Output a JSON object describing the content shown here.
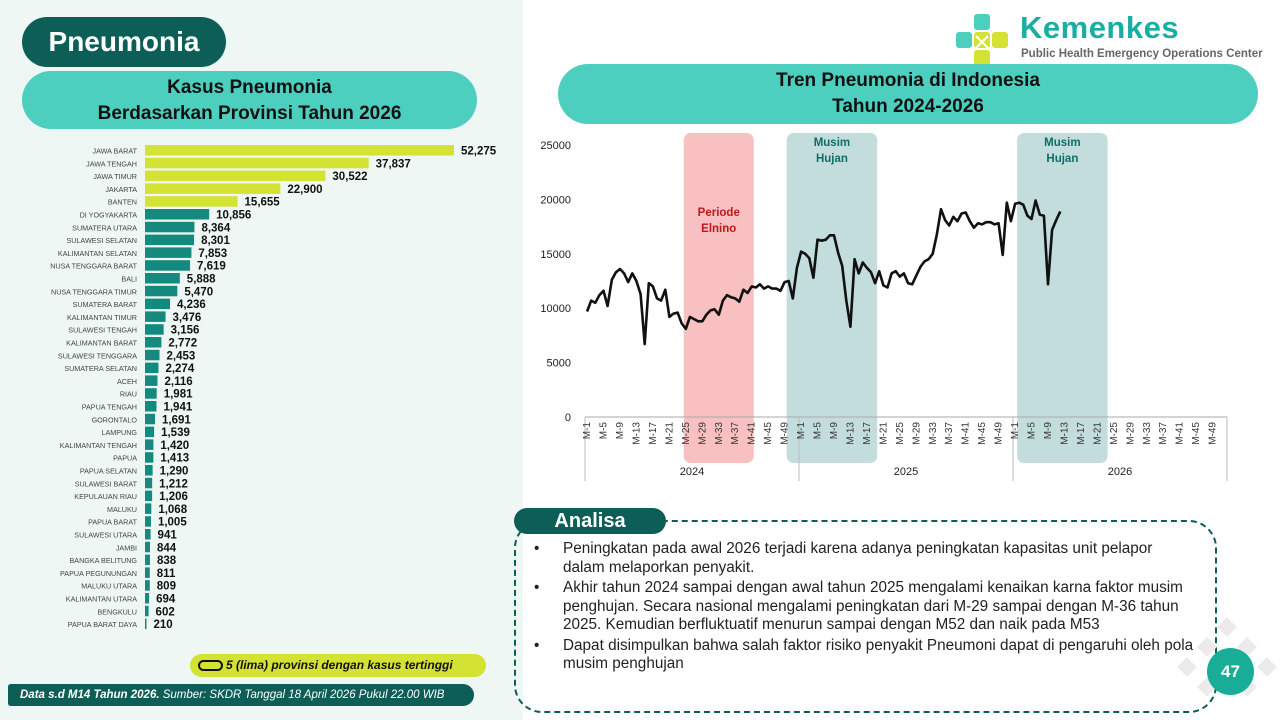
{
  "page_title": "Pneumonia",
  "logo": {
    "name": "Kemenkes",
    "subtitle": "Public Health Emergency Operations Center"
  },
  "left_header": {
    "line1": "Kasus Pneumonia",
    "line2": "Berdasarkan Provinsi Tahun 2026"
  },
  "right_header": {
    "line1": "Tren Pneumonia di Indonesia",
    "line2": "Tahun 2024-2026"
  },
  "legend": {
    "text": "5 (lima) provinsi dengan kasus tertinggi"
  },
  "source": {
    "bold": "Data s.d M14 Tahun 2026.",
    "text": " Sumber:  SKDR Tanggal 18 April 2026 Pukul 22.00 WIB"
  },
  "analisa": {
    "label": "Analisa",
    "points": [
      "Peningkatan pada awal 2026 terjadi karena adanya peningkatan kapasitas unit pelapor dalam melaporkan penyakit.",
      "Akhir tahun 2024 sampai dengan awal tahun 2025 mengalami kenaikan karna faktor musim penghujan. Secara nasional mengalami peningkatan dari M-29 sampai dengan M-36 tahun 2025. Kemudian berfluktuatif menurun sampai dengan M52 dan naik pada M53",
      "Dapat disimpulkan bahwa salah faktor risiko penyakit Pneumoni dapat di pengaruhi oleh pola musim penghujan"
    ]
  },
  "page_number": "47",
  "colors": {
    "dark_teal": "#0d5e57",
    "teal": "#4dcfc0",
    "bar_top": "#d4e233",
    "bar_rest": "#138a7d",
    "line": "#111111",
    "rain": "#bcd9d9",
    "elnino": "#f7b9b9"
  },
  "chart_data": [
    {
      "type": "bar",
      "orientation": "horizontal",
      "categories": [
        "JAWA BARAT",
        "JAWA TENGAH",
        "JAWA TIMUR",
        "JAKARTA",
        "BANTEN",
        "DI YOGYAKARTA",
        "SUMATERA UTARA",
        "SULAWESI SELATAN",
        "KALIMANTAN SELATAN",
        "NUSA TENGGARA BARAT",
        "BALI",
        "NUSA TENGGARA TIMUR",
        "SUMATERA BARAT",
        "KALIMANTAN TIMUR",
        "SULAWESI TENGAH",
        "KALIMANTAN BARAT",
        "SULAWESI TENGGARA",
        "SUMATERA SELATAN",
        "ACEH",
        "RIAU",
        "PAPUA TENGAH",
        "GORONTALO",
        "LAMPUNG",
        "KALIMANTAN TENGAH",
        "PAPUA",
        "PAPUA SELATAN",
        "SULAWESI BARAT",
        "KEPULAUAN RIAU",
        "MALUKU",
        "PAPUA BARAT",
        "SULAWESI UTARA",
        "JAMBI",
        "BANGKA BELITUNG",
        "PAPUA PEGUNUNGAN",
        "MALUKU UTARA",
        "KALIMANTAN UTARA",
        "BENGKULU",
        "PAPUA BARAT DAYA"
      ],
      "values": [
        52275,
        37837,
        30522,
        22900,
        15655,
        10856,
        8364,
        8301,
        7853,
        7619,
        5888,
        5470,
        4236,
        3476,
        3156,
        2772,
        2453,
        2274,
        2116,
        1981,
        1941,
        1691,
        1539,
        1420,
        1413,
        1290,
        1212,
        1206,
        1068,
        1005,
        941,
        844,
        838,
        811,
        809,
        694,
        602,
        210
      ],
      "value_labels": [
        "52,275",
        "37,837",
        "30,522",
        "22,900",
        "15,655",
        "10,856",
        "8,364",
        "8,301",
        "7,853",
        "7,619",
        "5,888",
        "5,470",
        "4,236",
        "3,476",
        "3,156",
        "2,772",
        "2,453",
        "2,274",
        "2,116",
        "1,981",
        "1,941",
        "1,691",
        "1,539",
        "1,420",
        "1,413",
        "1,290",
        "1,212",
        "1,206",
        "1,068",
        "1,005",
        "941",
        "844",
        "838",
        "811",
        "809",
        "694",
        "602",
        "210"
      ],
      "highlight_top": 5
    },
    {
      "type": "line",
      "y_ticks": [
        "0",
        "5000",
        "10000",
        "15000",
        "20000",
        "25000"
      ],
      "ylim": [
        0,
        25000
      ],
      "x_week_labels": [
        "M-1",
        "M-5",
        "M-9",
        "M-13",
        "M-17",
        "M-21",
        "M-25",
        "M-29",
        "M-33",
        "M-37",
        "M-41",
        "M-45",
        "M-49"
      ],
      "x_week_numbers": [
        1,
        5,
        9,
        13,
        17,
        21,
        25,
        29,
        33,
        37,
        41,
        45,
        49
      ],
      "years": [
        {
          "label": "2024",
          "weeks": 52
        },
        {
          "label": "2025",
          "weeks": 52
        },
        {
          "label": "2026",
          "weeks": 52
        }
      ],
      "periods": [
        {
          "label_line1": "Periode",
          "label_line2": "Elnino",
          "kind": "elnino",
          "start_index": 24,
          "end_index": 40
        },
        {
          "label_line1": "Musim",
          "label_line2": "Hujan",
          "kind": "rain",
          "start_index": 49,
          "end_index": 70
        },
        {
          "label_line1": "Musim",
          "label_line2": "Hujan",
          "kind": "rain",
          "start_index": 105,
          "end_index": 126
        }
      ],
      "series": [
        {
          "values": [
            9700,
            10700,
            10500,
            11200,
            11600,
            10200,
            12600,
            13300,
            13600,
            13200,
            12400,
            13200,
            12500,
            11300,
            6700,
            12300,
            12000,
            10900,
            10700,
            11700,
            9200,
            9500,
            9600,
            8600,
            8100,
            9200,
            9000,
            8800,
            8800,
            9400,
            9800,
            9900,
            9400,
            10700,
            11200,
            11000,
            10900,
            10600,
            11700,
            11400,
            12000,
            11900,
            12200,
            11800,
            12000,
            11800,
            11800,
            11600,
            12400,
            12500,
            10900,
            13700,
            15200,
            15000,
            14600,
            12800,
            16300,
            16200,
            16300,
            16700,
            16700,
            15100,
            13900,
            10700,
            8300,
            14500,
            13200,
            14200,
            13700,
            13300,
            12300,
            13400,
            12100,
            11900,
            13200,
            13400,
            12900,
            13200,
            12300,
            12200,
            13000,
            13800,
            14300,
            14500,
            15000,
            16800,
            19100,
            18100,
            17600,
            18400,
            18000,
            18700,
            18800,
            18000,
            17400,
            17800,
            17700,
            17900,
            17900,
            17700,
            17800,
            14900,
            19700,
            18000,
            19600,
            19700,
            19500,
            18500,
            18200,
            19900,
            18600,
            18500,
            12200,
            17200,
            18100,
            18900
          ]
        }
      ]
    }
  ]
}
